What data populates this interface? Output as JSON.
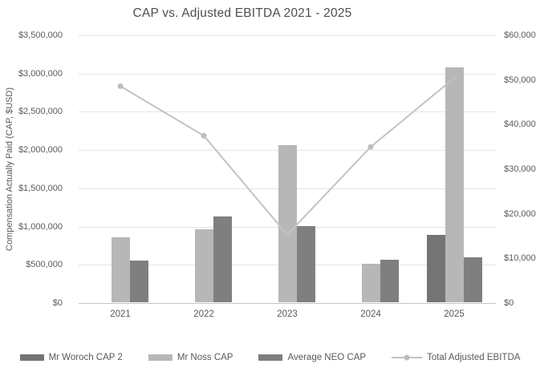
{
  "chart_data": {
    "type": "combo-bar-line",
    "title": "CAP vs. Adjusted EBITDA 2021 - 2025",
    "ylabel": "Compensation Actually Paid (CAP, $USD)",
    "categories": [
      "2021",
      "2022",
      "2023",
      "2024",
      "2025"
    ],
    "left_axis": {
      "min": 0,
      "max": 3500000,
      "step": 500000,
      "tick_labels": [
        "$3,500,000",
        "$3,000,000",
        "$2,500,000",
        "$2,000,000",
        "$1,500,000",
        "$1,000,000",
        "$500,000",
        "$0"
      ]
    },
    "right_axis": {
      "min": 0,
      "max": 60000,
      "step": 10000,
      "tick_labels": [
        "$60,000",
        "$50,000",
        "$40,000",
        "$30,000",
        "$20,000",
        "$10,000",
        "$0"
      ]
    },
    "series": [
      {
        "name": "Mr Woroch CAP 2",
        "type": "bar",
        "axis": "left",
        "color": "#747474",
        "values": [
          0,
          0,
          0,
          0,
          880000
        ]
      },
      {
        "name": "Mr Noss CAP",
        "type": "bar",
        "axis": "left",
        "color": "#b7b7b7",
        "values": [
          850000,
          950000,
          2050000,
          500000,
          3075000
        ]
      },
      {
        "name": "Average NEO CAP",
        "type": "bar",
        "axis": "left",
        "color": "#7f7f7f",
        "values": [
          550000,
          1125000,
          1000000,
          560000,
          590000
        ]
      },
      {
        "name": "Total Adjusted EBITDA",
        "type": "line",
        "axis": "right",
        "color": "#c3c3c3",
        "marker_color": "#bdbdbd",
        "values": [
          48600,
          37500,
          15300,
          35000,
          50400
        ]
      }
    ],
    "legend_position": "bottom",
    "grid": true,
    "colors": {
      "gridline": "#e4e4e4",
      "axis_line": "#c6c6c6",
      "text": "#595959"
    }
  }
}
